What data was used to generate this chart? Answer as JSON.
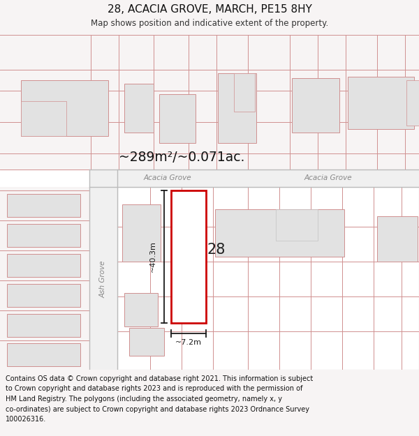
{
  "title": "28, ACACIA GROVE, MARCH, PE15 8HY",
  "subtitle": "Map shows position and indicative extent of the property.",
  "area_text": "~289m²/~0.071ac.",
  "street_label1": "Acacia Grove",
  "street_label2": "Acacia Grove",
  "side_street": "Ash Grove",
  "parcel_label": "28",
  "dim_height": "~40.3m",
  "dim_width": "~7.2m",
  "footer_lines": [
    "Contains OS data © Crown copyright and database right 2021. This information is subject",
    "to Crown copyright and database rights 2023 and is reproduced with the permission of",
    "HM Land Registry. The polygons (including the associated geometry, namely x, y",
    "co-ordinates) are subject to Crown copyright and database rights 2023 Ordnance Survey",
    "100026316."
  ],
  "bg_color": "#f7f4f4",
  "map_bg": "#ffffff",
  "building_fill": "#e2e2e2",
  "building_edge": "#d09090",
  "road_fill": "#f0f0f0",
  "road_edge": "#bbbbbb",
  "highlight_edge": "#cc0000",
  "highlight_fill": "#ffffff",
  "dim_color": "#1a1a1a",
  "text_color": "#888888",
  "title_color": "#111111",
  "footer_color": "#111111",
  "area_color": "#111111"
}
